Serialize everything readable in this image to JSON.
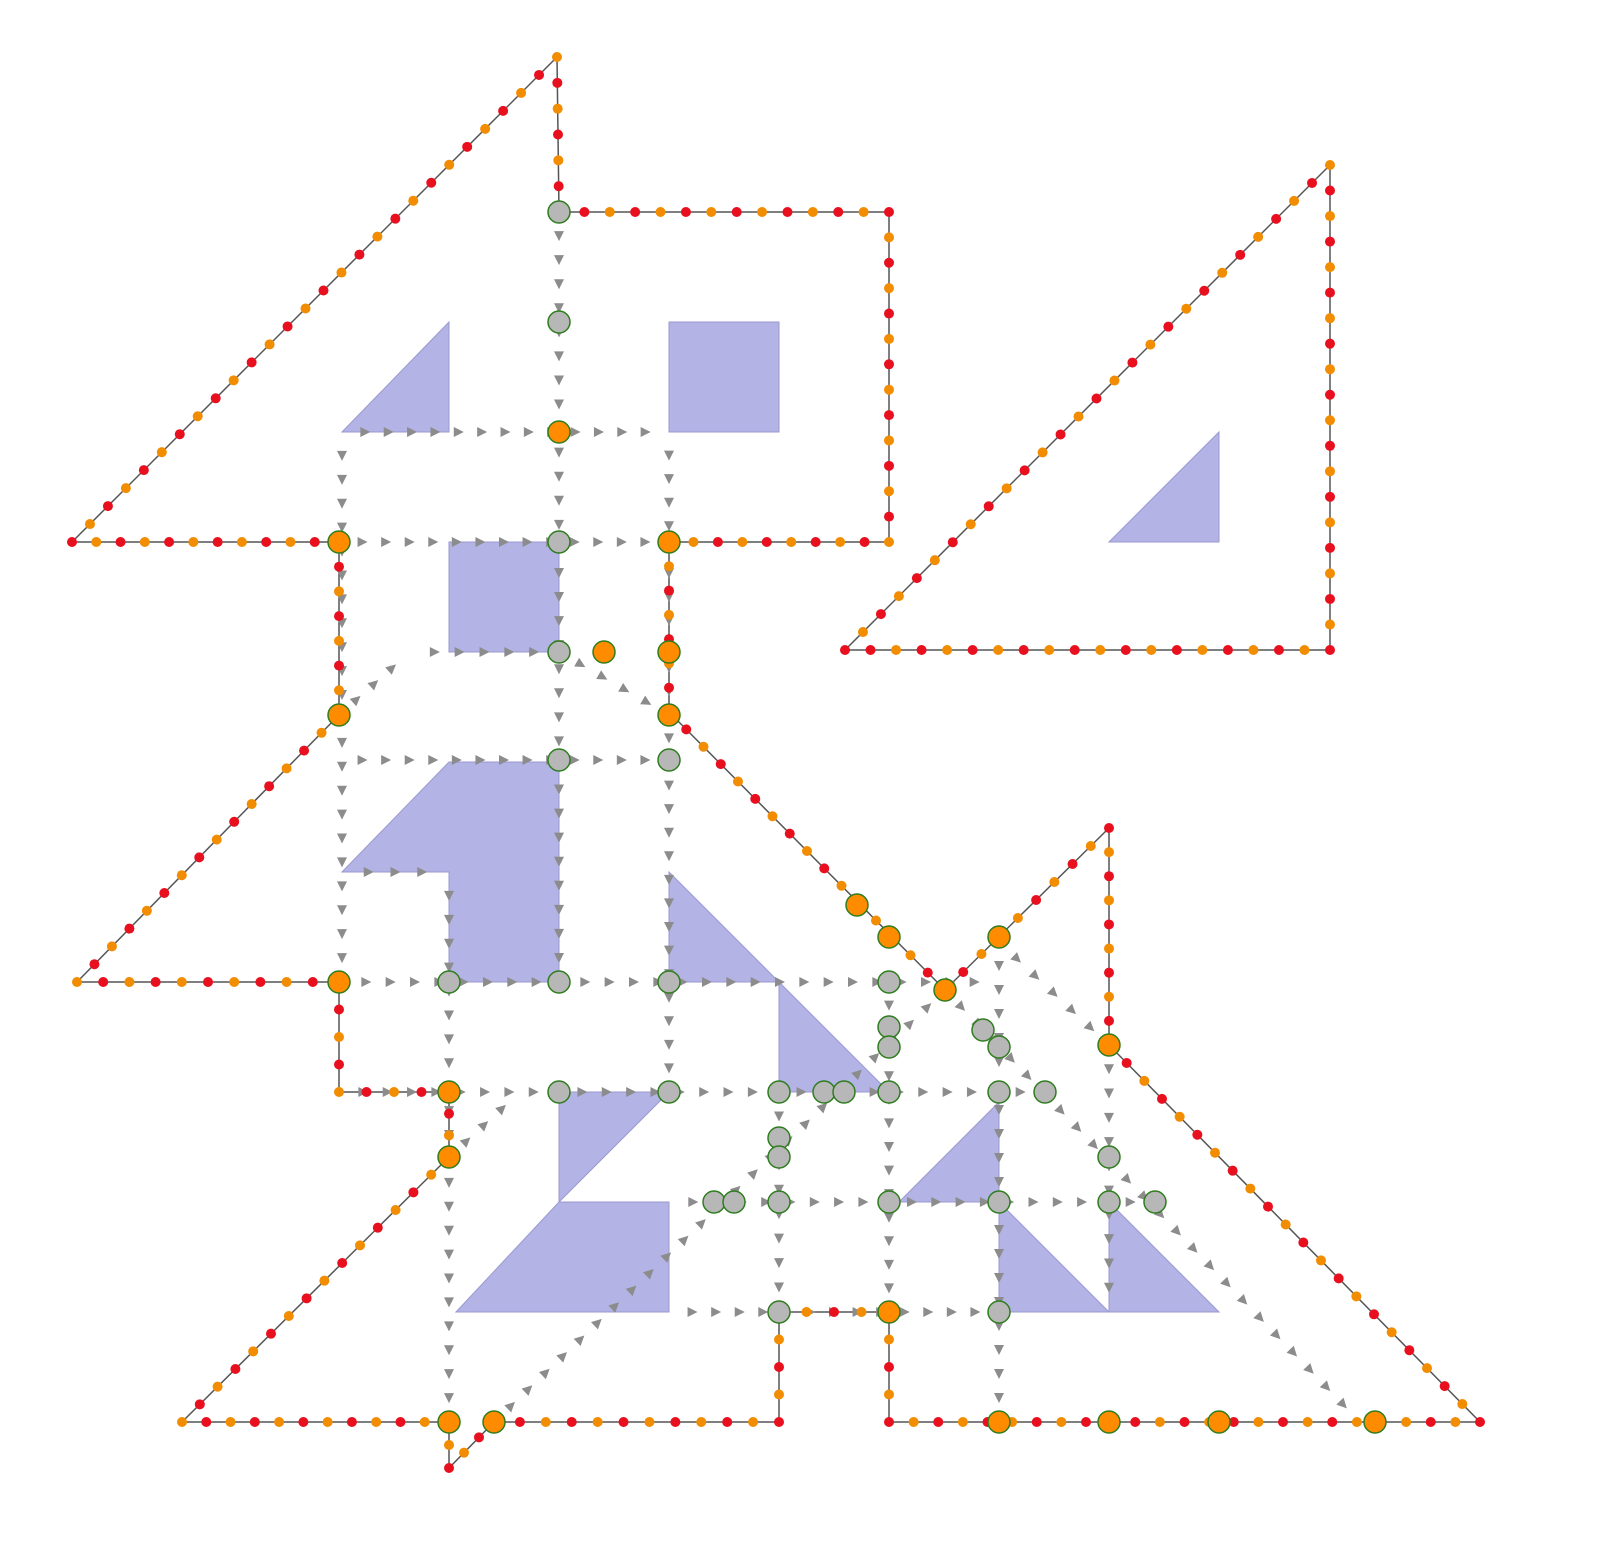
{
  "colors": {
    "background": "#ffffff",
    "fill": "#b3b3e6",
    "fill_stroke": "#9a9ad0",
    "outline": "#555555",
    "arrow": "#8c8c8c",
    "dot_red": "#e8101e",
    "dot_orange": "#f28c00",
    "node_orange": "#ff8c00",
    "node_gray": "#b7b7b7",
    "node_stroke": "#2e7d1e"
  },
  "legend": []
}
